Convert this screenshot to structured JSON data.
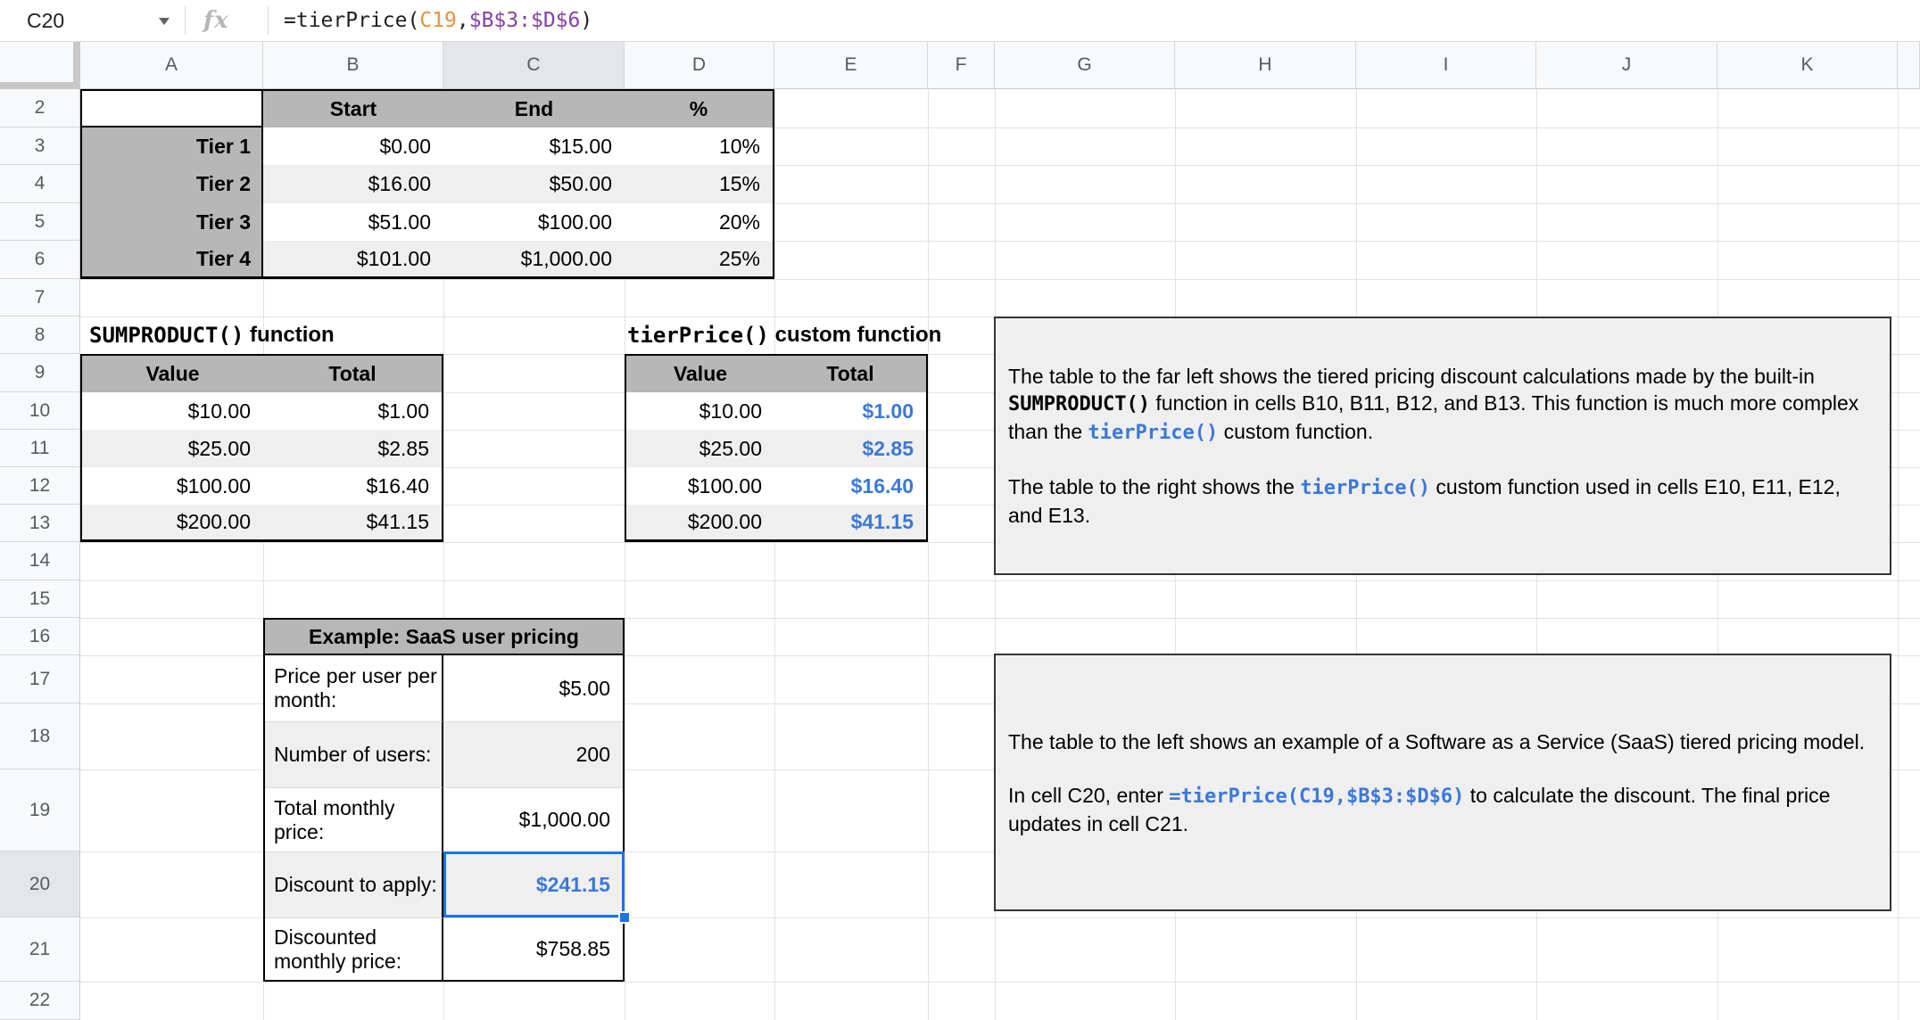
{
  "formula_bar": {
    "cell_ref": "C20",
    "fx_label": "fx",
    "formula": {
      "part1": "=tierPrice(",
      "ref1": "C19",
      "comma": ",",
      "ref2": "$B$3:$D$6",
      "part2": ")"
    }
  },
  "grid": {
    "columns": [
      "A",
      "B",
      "C",
      "D",
      "E",
      "F",
      "G",
      "H",
      "I",
      "J",
      "K"
    ],
    "rows": [
      "2",
      "3",
      "4",
      "5",
      "6",
      "7",
      "8",
      "9",
      "10",
      "11",
      "12",
      "13",
      "14",
      "15",
      "16",
      "17",
      "18",
      "19",
      "20",
      "21",
      "22"
    ],
    "selected_column": "C",
    "selected_row": "20"
  },
  "tier_table": {
    "headers": [
      "Start",
      "End",
      "%"
    ],
    "rows": [
      {
        "label": "Tier 1",
        "start": "$0.00",
        "end": "$15.00",
        "pct": "10%"
      },
      {
        "label": "Tier 2",
        "start": "$16.00",
        "end": "$50.00",
        "pct": "15%"
      },
      {
        "label": "Tier 3",
        "start": "$51.00",
        "end": "$100.00",
        "pct": "20%"
      },
      {
        "label": "Tier 4",
        "start": "$101.00",
        "end": "$1,000.00",
        "pct": "25%"
      }
    ]
  },
  "sumproduct_table": {
    "title_code": "SUMPRODUCT()",
    "title_rest": " function",
    "col1": "Value",
    "col2": "Total",
    "rows": [
      {
        "value": "$10.00",
        "total": "$1.00"
      },
      {
        "value": "$25.00",
        "total": "$2.85"
      },
      {
        "value": "$100.00",
        "total": "$16.40"
      },
      {
        "value": "$200.00",
        "total": "$41.15"
      }
    ]
  },
  "tierprice_table": {
    "title_code": "tierPrice()",
    "title_rest": " custom function",
    "col1": "Value",
    "col2": "Total",
    "rows": [
      {
        "value": "$10.00",
        "total": "$1.00"
      },
      {
        "value": "$25.00",
        "total": "$2.85"
      },
      {
        "value": "$100.00",
        "total": "$16.40"
      },
      {
        "value": "$200.00",
        "total": "$41.15"
      }
    ]
  },
  "saas_table": {
    "title": "Example: SaaS user pricing",
    "rows": [
      {
        "label": "Price per user per month:",
        "value": "$5.00"
      },
      {
        "label": "Number of users:",
        "value": "200"
      },
      {
        "label": "Total monthly price:",
        "value": "$1,000.00"
      },
      {
        "label": "Discount to apply:",
        "value": "$241.15"
      },
      {
        "label": "Discounted monthly price:",
        "value": "$758.85"
      }
    ]
  },
  "note_sumproduct": {
    "p1a": "The table to the far left shows the tiered pricing discount calculations made by the built-in ",
    "p1_code": "SUMPRODUCT()",
    "p1b": " function in cells B10, B11, B12, and B13. This function is much more complex than the ",
    "p1_code2": "tierPrice()",
    "p1c": " custom function.",
    "p2a": "The table to the right shows the ",
    "p2_code": "tierPrice()",
    "p2b": " custom function used in cells E10, E11, E12, and E13."
  },
  "note_saas": {
    "p1": "The table to the left shows an example of a Software as a Service (SaaS) tiered pricing model.",
    "p2a": "In cell C20, enter ",
    "p2_code": "=tierPrice(C19,$B$3:$D$6)",
    "p2b": " to calculate the discount. The final price updates in cell C21."
  },
  "colors": {
    "selection_blue": "#1a73e8",
    "value_blue": "#3c78d8",
    "table_header_gray": "#b7b7b7",
    "band_gray": "#efefef",
    "ref_orange": "#e8913d",
    "ref_purple": "#8441a4"
  }
}
